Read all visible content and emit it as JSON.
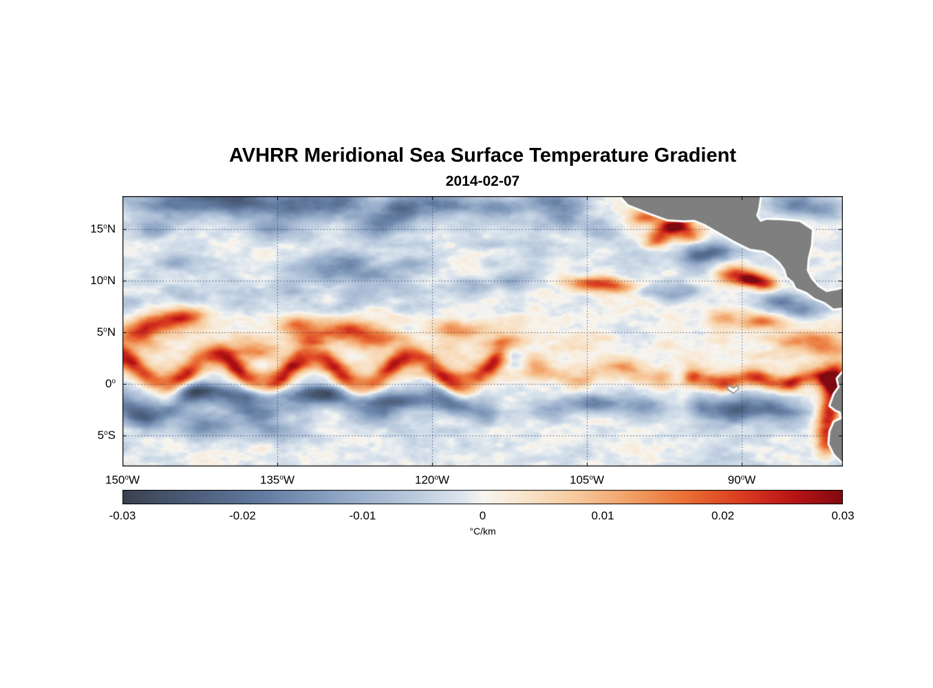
{
  "chart_data": {
    "type": "heatmap",
    "title": "AVHRR Meridional Sea Surface Temperature Gradient",
    "subtitle": "2014-02-07",
    "lon_range": [
      -150,
      -80.2
    ],
    "lat_range": [
      -8,
      18.2
    ],
    "y_axis": {
      "ticks": [
        {
          "deg": "15",
          "hem": "N",
          "lat": 15
        },
        {
          "deg": "10",
          "hem": "N",
          "lat": 10
        },
        {
          "deg": "5",
          "hem": "N",
          "lat": 5
        },
        {
          "deg": "0",
          "hem": "",
          "lat": 0
        },
        {
          "deg": "5",
          "hem": "S",
          "lat": -5
        }
      ]
    },
    "x_axis": {
      "ticks": [
        {
          "deg": "150",
          "hem": "W",
          "lon": -150
        },
        {
          "deg": "135",
          "hem": "W",
          "lon": -135
        },
        {
          "deg": "120",
          "hem": "W",
          "lon": -120
        },
        {
          "deg": "105",
          "hem": "W",
          "lon": -105
        },
        {
          "deg": "90",
          "hem": "W",
          "lon": -90
        }
      ]
    },
    "colorbar": {
      "range": [
        -0.03,
        0.03
      ],
      "ticks": [
        "-0.03",
        "-0.02",
        "-0.01",
        "0",
        "0.01",
        "0.02",
        "0.03"
      ],
      "label": "°C/km",
      "colormap": [
        [
          0.0,
          "#3a4250"
        ],
        [
          0.1,
          "#4d5f7c"
        ],
        [
          0.2,
          "#657ea3"
        ],
        [
          0.3,
          "#8fa6c4"
        ],
        [
          0.4,
          "#b9c9dd"
        ],
        [
          0.47,
          "#dde6ee"
        ],
        [
          0.5,
          "#f7f5f0"
        ],
        [
          0.55,
          "#f8e6cf"
        ],
        [
          0.62,
          "#f7cda2"
        ],
        [
          0.7,
          "#f2a268"
        ],
        [
          0.78,
          "#e96f35"
        ],
        [
          0.86,
          "#d93a20"
        ],
        [
          0.93,
          "#b81416"
        ],
        [
          1.0,
          "#7f0a10"
        ]
      ]
    },
    "grid": {
      "color": "rgba(20,35,80,0.75)"
    },
    "field": {
      "seed": 11,
      "bias": {
        "base": -0.0017,
        "peach_amp": 0.0032,
        "peach_lat": 3.5,
        "peach_sigma": 2.6
      },
      "noise_layers": [
        {
          "amp": 0.0045,
          "sx": 2.2,
          "sy": 0.9
        },
        {
          "amp": 0.003,
          "sx": 7.0,
          "sy": 3.0
        },
        {
          "amp": 0.0015,
          "sx": 0.7,
          "sy": 0.5
        }
      ],
      "bands": [
        {
          "lat": 1.3,
          "amp": 0.026,
          "sigma": 0.85,
          "lon_start": -152,
          "lon_end": -112,
          "wave_amp": 1.35,
          "wave_len": 9.5,
          "wave_phase": 0.6,
          "amp_mod": 0.3
        },
        {
          "lat": 1.0,
          "amp": 0.012,
          "sigma": 0.7,
          "lon_start": -112,
          "lon_end": -96,
          "wave_amp": 0.6,
          "wave_len": 8.0,
          "wave_phase": 0.2,
          "amp_mod": 0.35
        },
        {
          "lat": 0.35,
          "amp": 0.024,
          "sigma": 0.6,
          "lon_start": -96.5,
          "lon_end": -78,
          "wave_amp": 0.3,
          "wave_len": 6.0,
          "wave_phase": 0.0,
          "amp_mod": 0.25
        },
        {
          "lat": -1.9,
          "amp": -0.015,
          "sigma": 0.85,
          "lon_start": -152,
          "lon_end": -113,
          "wave_amp": 0.9,
          "wave_len": 11.0,
          "wave_phase": 2.1,
          "amp_mod": 0.45
        },
        {
          "lat": -2.4,
          "amp": -0.011,
          "sigma": 0.9,
          "lon_start": -96,
          "lon_end": -83,
          "wave_amp": 0.4,
          "wave_len": 7.0,
          "wave_phase": 1.0,
          "amp_mod": 0.3
        },
        {
          "lat": 8.3,
          "amp": -0.006,
          "sigma": 0.9,
          "lon_start": -152,
          "lon_end": -118,
          "wave_amp": 0.5,
          "wave_len": 10.0,
          "wave_phase": 3.0,
          "amp_mod": 0.5
        }
      ],
      "blobs": [
        [
          -145.0,
          17.6,
          -0.014,
          3.0,
          1.1
        ],
        [
          -139.0,
          17.9,
          -0.02,
          2.6,
          1.2
        ],
        [
          -133.0,
          17.3,
          -0.016,
          2.2,
          1.0
        ],
        [
          -128.5,
          17.9,
          -0.018,
          2.0,
          1.0
        ],
        [
          -122.5,
          17.0,
          -0.017,
          1.8,
          0.9
        ],
        [
          -118.5,
          17.6,
          -0.014,
          2.0,
          0.8
        ],
        [
          -113.5,
          16.8,
          -0.011,
          1.6,
          0.8
        ],
        [
          -108.0,
          17.8,
          -0.012,
          2.0,
          0.8
        ],
        [
          -146.5,
          15.0,
          -0.009,
          1.5,
          0.7
        ],
        [
          -135.5,
          14.8,
          -0.01,
          1.6,
          0.7
        ],
        [
          -125.0,
          15.3,
          -0.012,
          1.8,
          0.8
        ],
        [
          -107.5,
          16.2,
          -0.012,
          1.5,
          0.9
        ],
        [
          -103.5,
          15.0,
          -0.009,
          1.2,
          0.7
        ],
        [
          -144.0,
          11.8,
          -0.008,
          1.8,
          0.7
        ],
        [
          -131.0,
          11.0,
          -0.011,
          2.2,
          0.8
        ],
        [
          -128.0,
          12.0,
          -0.01,
          1.6,
          0.7
        ],
        [
          -126.0,
          10.4,
          -0.01,
          1.8,
          0.7
        ],
        [
          -121.5,
          11.5,
          -0.009,
          1.5,
          0.6
        ],
        [
          -112.0,
          10.0,
          -0.008,
          1.5,
          0.6
        ],
        [
          -116.0,
          9.3,
          -0.008,
          1.6,
          0.6
        ],
        [
          -85.0,
          17.3,
          -0.012,
          1.6,
          0.8
        ],
        [
          -82.0,
          16.8,
          -0.009,
          1.3,
          0.7
        ],
        [
          -99.3,
          16.1,
          0.016,
          1.2,
          0.55
        ],
        [
          -97.2,
          14.9,
          0.022,
          1.0,
          0.7
        ],
        [
          -96.0,
          15.4,
          0.02,
          0.9,
          0.5
        ],
        [
          -95.0,
          14.4,
          0.016,
          0.8,
          0.6
        ],
        [
          -98.3,
          13.9,
          0.014,
          0.8,
          0.5
        ],
        [
          -94.3,
          12.4,
          -0.018,
          1.1,
          0.7
        ],
        [
          -92.3,
          12.9,
          -0.012,
          1.0,
          0.6
        ],
        [
          -104.6,
          9.7,
          0.02,
          1.6,
          0.5
        ],
        [
          -101.9,
          9.5,
          0.012,
          1.2,
          0.45
        ],
        [
          -96.5,
          8.8,
          -0.012,
          1.6,
          0.6
        ],
        [
          -90.8,
          10.6,
          0.02,
          1.2,
          0.6
        ],
        [
          -89.0,
          10.1,
          0.026,
          0.9,
          0.5
        ],
        [
          -87.6,
          9.6,
          0.016,
          0.8,
          0.5
        ],
        [
          -86.5,
          8.0,
          -0.016,
          1.5,
          0.6
        ],
        [
          -83.8,
          7.2,
          -0.014,
          1.3,
          0.6
        ],
        [
          -91.5,
          6.4,
          0.013,
          1.2,
          0.5
        ],
        [
          -88.0,
          6.0,
          0.014,
          1.4,
          0.5
        ],
        [
          -84.0,
          4.3,
          0.013,
          2.0,
          0.55
        ],
        [
          -81.8,
          3.4,
          0.012,
          1.5,
          0.5
        ],
        [
          -146.3,
          5.9,
          0.02,
          1.8,
          0.7
        ],
        [
          -143.8,
          6.6,
          0.016,
          1.4,
          0.6
        ],
        [
          -148.5,
          4.8,
          0.018,
          1.2,
          0.7
        ],
        [
          -133.0,
          5.8,
          0.014,
          1.2,
          0.6
        ],
        [
          -128.5,
          5.2,
          0.02,
          2.2,
          0.7
        ],
        [
          -125.5,
          4.3,
          0.016,
          1.4,
          0.6
        ],
        [
          -132.0,
          4.4,
          0.012,
          1.4,
          0.5
        ],
        [
          -137.5,
          3.3,
          0.012,
          2.2,
          0.6
        ],
        [
          -117.5,
          5.3,
          0.013,
          1.8,
          0.55
        ],
        [
          -113.0,
          4.1,
          0.011,
          1.5,
          0.5
        ],
        [
          -143.0,
          -0.6,
          -0.013,
          2.5,
          0.6
        ],
        [
          -137.0,
          -1.2,
          -0.014,
          2.3,
          0.6
        ],
        [
          -130.5,
          -0.9,
          -0.012,
          2.0,
          0.6
        ],
        [
          -124.0,
          -1.5,
          -0.013,
          2.2,
          0.6
        ],
        [
          -147.5,
          -3.2,
          -0.012,
          1.8,
          0.8
        ],
        [
          -141.5,
          -4.1,
          -0.013,
          2.0,
          0.9
        ],
        [
          -135.0,
          -4.6,
          -0.009,
          1.6,
          0.7
        ],
        [
          -118.0,
          -2.2,
          -0.008,
          1.8,
          0.6
        ],
        [
          -108.5,
          -2.6,
          -0.009,
          1.5,
          0.6
        ],
        [
          -104.5,
          -1.9,
          -0.014,
          1.8,
          0.7
        ],
        [
          -99.5,
          -2.3,
          -0.012,
          1.8,
          0.7
        ],
        [
          -90.0,
          -2.6,
          -0.011,
          2.5,
          0.7
        ],
        [
          -80.9,
          1.0,
          0.018,
          0.8,
          0.8
        ],
        [
          -81.2,
          -0.8,
          0.024,
          0.8,
          1.2
        ],
        [
          -81.6,
          -3.0,
          0.02,
          0.7,
          1.0
        ],
        [
          -81.8,
          -5.3,
          0.022,
          0.7,
          1.2
        ]
      ]
    },
    "land": {
      "fill": "#7f7f7f",
      "coast_margin": "#ffffff",
      "island_fill": "#ffffff",
      "island_stroke": "#8a8a8a",
      "polygons": {
        "central_america": [
          [
            -102.6,
            19.2
          ],
          [
            -101.0,
            17.4
          ],
          [
            -99.0,
            16.6
          ],
          [
            -97.2,
            15.95
          ],
          [
            -95.6,
            15.85
          ],
          [
            -94.6,
            15.9
          ],
          [
            -93.6,
            15.5
          ],
          [
            -92.2,
            14.7
          ],
          [
            -90.8,
            13.9
          ],
          [
            -89.2,
            13.1
          ],
          [
            -87.8,
            12.9
          ],
          [
            -87.0,
            12.4
          ],
          [
            -86.3,
            11.8
          ],
          [
            -85.8,
            11.1
          ],
          [
            -85.6,
            10.4
          ],
          [
            -85.0,
            9.9
          ],
          [
            -84.7,
            9.3
          ],
          [
            -83.7,
            8.9
          ],
          [
            -82.9,
            8.3
          ],
          [
            -81.9,
            7.9
          ],
          [
            -81.1,
            7.3
          ],
          [
            -80.3,
            7.4
          ],
          [
            -79.0,
            7.6
          ],
          [
            -79.0,
            9.6
          ],
          [
            -80.7,
            9.1
          ],
          [
            -81.8,
            8.9
          ],
          [
            -82.6,
            9.4
          ],
          [
            -83.3,
            10.2
          ],
          [
            -83.7,
            11.0
          ],
          [
            -83.6,
            12.2
          ],
          [
            -83.3,
            13.4
          ],
          [
            -83.2,
            14.9
          ],
          [
            -84.4,
            15.7
          ],
          [
            -86.0,
            15.85
          ],
          [
            -87.6,
            15.9
          ],
          [
            -88.2,
            15.7
          ],
          [
            -88.6,
            16.3
          ],
          [
            -88.4,
            17.0
          ],
          [
            -88.25,
            18.0
          ],
          [
            -88.1,
            19.2
          ]
        ],
        "south_america": [
          [
            -79.0,
            1.8
          ],
          [
            -80.1,
            1.2
          ],
          [
            -80.7,
            0.5
          ],
          [
            -80.5,
            -0.3
          ],
          [
            -81.0,
            -1.0
          ],
          [
            -81.4,
            -2.1
          ],
          [
            -80.9,
            -2.5
          ],
          [
            -80.4,
            -2.7
          ],
          [
            -80.3,
            -3.4
          ],
          [
            -81.0,
            -3.7
          ],
          [
            -81.4,
            -4.6
          ],
          [
            -81.5,
            -5.8
          ],
          [
            -81.0,
            -6.8
          ],
          [
            -80.2,
            -7.6
          ],
          [
            -79.0,
            -8.8
          ]
        ]
      },
      "islands": {
        "galapagos": [
          [
            -91.3,
            -0.15
          ],
          [
            -90.8,
            -0.4
          ],
          [
            -90.4,
            -0.15
          ],
          [
            -90.3,
            -0.5
          ],
          [
            -90.8,
            -0.9
          ],
          [
            -91.35,
            -0.55
          ]
        ]
      }
    }
  }
}
